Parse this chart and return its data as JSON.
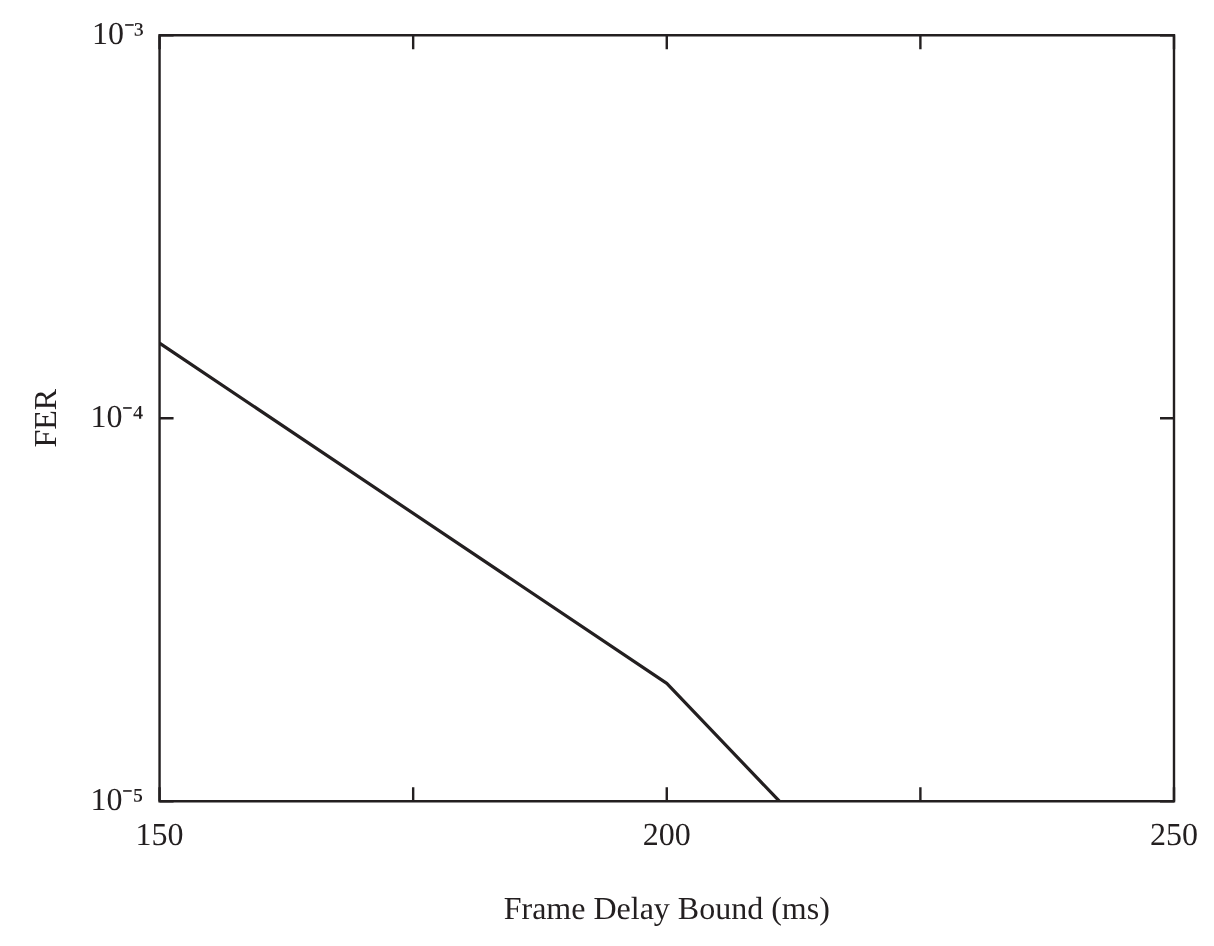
{
  "chart_data": {
    "type": "line",
    "xlabel": "Frame Delay Bound (ms)",
    "ylabel": "FER",
    "x": [
      150,
      200,
      211.1
    ],
    "series": [
      {
        "color": "#231f20",
        "values": [
          0.000157,
          2.03e-05,
          1e-05
        ]
      }
    ],
    "xlim": [
      150,
      250
    ],
    "xticks": [
      150,
      {
        "value": 175,
        "label": null
      },
      200,
      {
        "value": 225,
        "label": null
      },
      250
    ],
    "ylim": [
      1e-05,
      0.001
    ],
    "yticks": [
      {
        "value": 1e-05,
        "label": "10⁻⁵"
      },
      {
        "value": 0.0001,
        "label": "10⁻⁴"
      },
      {
        "value": 0.001,
        "label": "10⁻³"
      }
    ],
    "log": "y",
    "grid": false,
    "legend": false,
    "marker": "none",
    "line_style": "solid"
  }
}
